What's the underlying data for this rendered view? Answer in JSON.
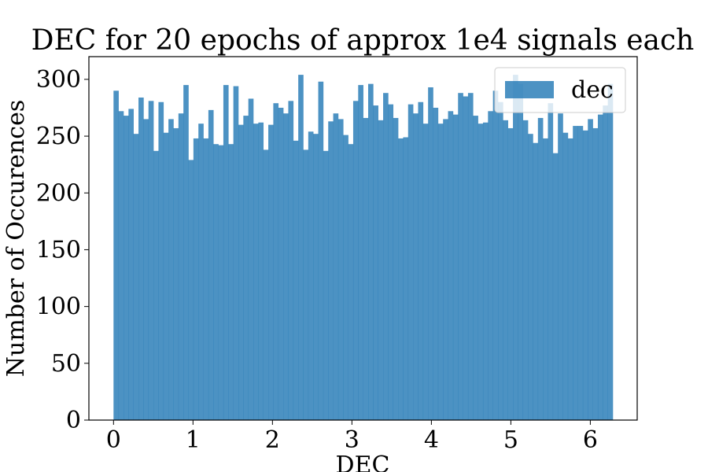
{
  "chart_data": {
    "type": "bar",
    "title": "DEC for 20 epochs of approx 1e4 signals each",
    "xlabel": "DEC",
    "ylabel": "Number of Occurences",
    "xlim": [
      -0.31,
      6.59
    ],
    "ylim": [
      0,
      320
    ],
    "bin_start": 0.0,
    "bin_end": 6.283,
    "xticks": [
      0,
      1,
      2,
      3,
      4,
      5,
      6
    ],
    "yticks": [
      0,
      50,
      100,
      150,
      200,
      250,
      300
    ],
    "legend_placement": "upper-right",
    "grid": false,
    "series": [
      {
        "name": "dec",
        "color": "#1f77b4",
        "values": [
          290,
          272,
          268,
          274,
          252,
          284,
          265,
          281,
          237,
          280,
          253,
          265,
          257,
          270,
          295,
          229,
          248,
          261,
          248,
          273,
          243,
          242,
          295,
          243,
          294,
          260,
          268,
          283,
          261,
          262,
          238,
          260,
          279,
          275,
          270,
          281,
          246,
          304,
          238,
          254,
          252,
          298,
          237,
          263,
          270,
          265,
          251,
          243,
          281,
          295,
          266,
          296,
          277,
          264,
          288,
          278,
          266,
          248,
          249,
          278,
          270,
          280,
          261,
          293,
          275,
          261,
          265,
          272,
          269,
          288,
          285,
          288,
          268,
          261,
          262,
          272,
          290,
          280,
          264,
          257,
          304,
          296,
          264,
          252,
          244,
          266,
          248,
          279,
          235,
          270,
          253,
          248,
          259,
          259,
          255,
          265,
          257,
          269,
          277,
          296
        ]
      }
    ]
  }
}
